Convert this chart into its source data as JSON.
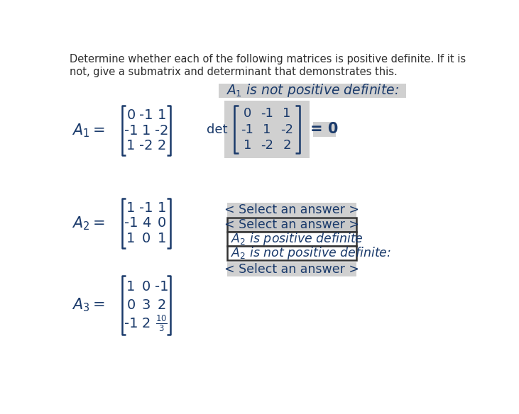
{
  "title_text": "Determine whether each of the following matrices is positive definite. If it is\nnot, give a submatrix and determinant that demonstrates this.",
  "background_color": "#ffffff",
  "text_color": "#1a3a6b",
  "highlight_color": "#d0d0d0",
  "border_color": "#333333",
  "A1_matrix": [
    "0",
    "-1",
    "1",
    "-1",
    "1",
    "-2",
    "1",
    "-2",
    "2"
  ],
  "A2_matrix": [
    "1",
    "-1",
    "1",
    "-1",
    "4",
    "0",
    "1",
    "0",
    "1"
  ],
  "A3_matrix": [
    "1",
    "0",
    "-1",
    "0",
    "3",
    "2",
    "-1",
    "2",
    ""
  ],
  "dropdown1": "< Select an answer >",
  "dropdown2": "< Select an answer >",
  "option3": "$A_2$ is positive definite",
  "option4": "$A_2$ is not positive definite:",
  "dropdown3": "< Select an answer >"
}
